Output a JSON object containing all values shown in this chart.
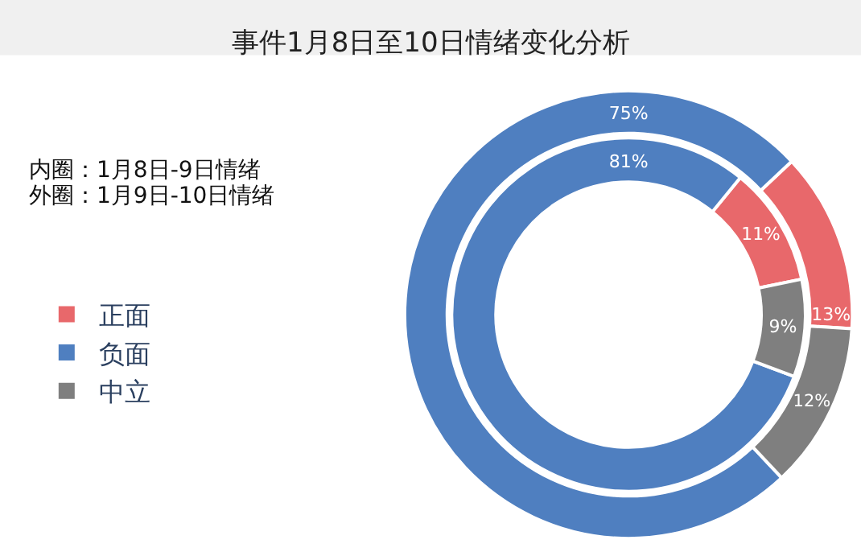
{
  "chart_data": {
    "type": "donut",
    "title": "事件1月8日至10日情绪变化分析",
    "categories": [
      "正面",
      "负面",
      "中立"
    ],
    "colors": [
      "#e8686b",
      "#4f7fc0",
      "#7f7f7f"
    ],
    "series": [
      {
        "values": [
          11,
          81,
          9
        ],
        "value_labels": [
          "11%",
          "81%",
          "9%"
        ]
      },
      {
        "values": [
          13,
          75,
          12
        ],
        "value_labels": [
          "13%",
          "75%",
          "12%"
        ]
      }
    ],
    "annotations": [
      "内圈：1月8日-9日情绪",
      "外圈：1月9日-10日情绪"
    ],
    "legend": "left"
  }
}
